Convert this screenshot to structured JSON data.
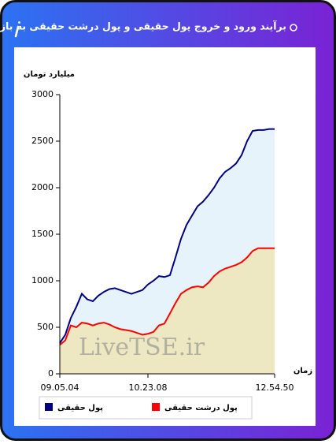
{
  "chart_data": {
    "type": "area",
    "title": "برآیند ورود و خروج پول حقیقی و پول درشت حقیقی به بازار",
    "y_label": "میلیارد تومان",
    "x_label": "زمان",
    "watermark": "LiveTSE.ir",
    "categories": [
      "09.05.04",
      null,
      null,
      null,
      null,
      null,
      null,
      null,
      null,
      null,
      null,
      null,
      null,
      null,
      null,
      null,
      "10.23.08",
      null,
      null,
      null,
      null,
      null,
      null,
      null,
      null,
      null,
      null,
      null,
      null,
      null,
      null,
      null,
      null,
      null,
      null,
      null,
      null,
      null,
      null,
      "12.54.50"
    ],
    "series": [
      {
        "name": "پول حقیقی",
        "color": "#000080",
        "fill": "#e6f3fa",
        "values": [
          330,
          420,
          600,
          720,
          860,
          800,
          780,
          840,
          880,
          910,
          920,
          900,
          880,
          860,
          880,
          900,
          960,
          1000,
          1050,
          1040,
          1060,
          1250,
          1450,
          1600,
          1700,
          1800,
          1850,
          1920,
          2000,
          2100,
          2170,
          2210,
          2260,
          2350,
          2500,
          2610,
          2620,
          2620,
          2630,
          2630
        ]
      },
      {
        "name": "پول درشت حقیقی",
        "color": "#ff0000",
        "fill": "#eee8c2",
        "values": [
          310,
          360,
          520,
          500,
          550,
          540,
          520,
          540,
          550,
          530,
          500,
          480,
          470,
          460,
          440,
          420,
          430,
          450,
          520,
          540,
          650,
          760,
          860,
          900,
          930,
          940,
          930,
          980,
          1050,
          1100,
          1130,
          1150,
          1170,
          1200,
          1250,
          1320,
          1350,
          1350,
          1350,
          1350
        ]
      }
    ],
    "ylim": [
      0,
      3000
    ],
    "yticks": [
      0,
      500,
      1000,
      1500,
      2000,
      2500,
      3000
    ]
  }
}
